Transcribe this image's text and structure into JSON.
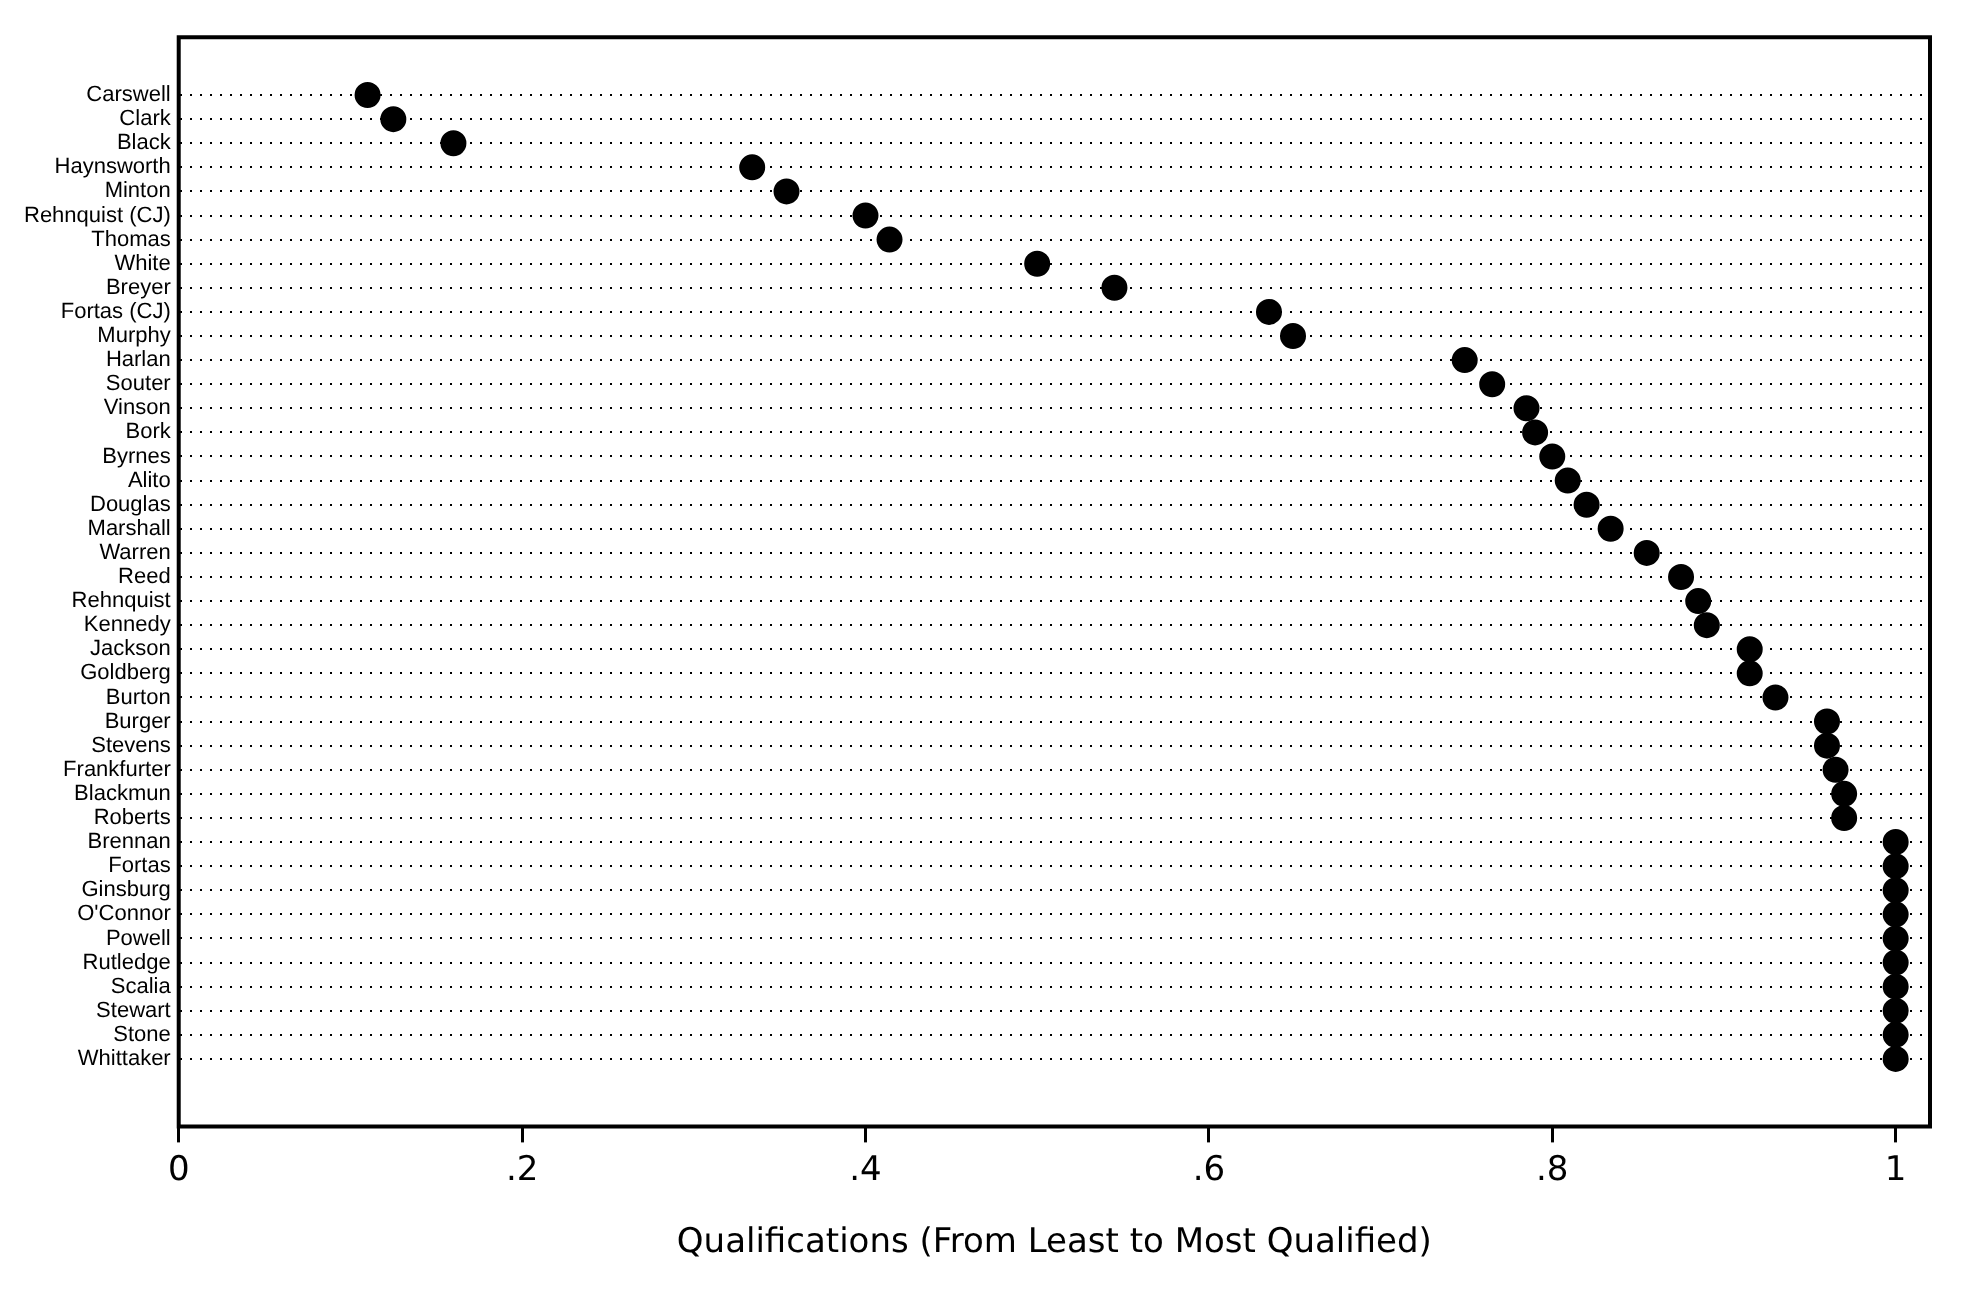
{
  "chart_data": {
    "type": "scatter",
    "orientation": "horizontal",
    "xlabel": "Qualifications (From Least to Most Qualified)",
    "categories": [
      "Carswell",
      "Clark",
      "Black",
      "Haynsworth",
      "Minton",
      "Rehnquist (CJ)",
      "Thomas",
      "White",
      "Breyer",
      "Fortas (CJ)",
      "Murphy",
      "Harlan",
      "Souter",
      "Vinson",
      "Bork",
      "Byrnes",
      "Alito",
      "Douglas",
      "Marshall",
      "Warren",
      "Reed",
      "Rehnquist",
      "Kennedy",
      "Jackson",
      "Goldberg",
      "Burton",
      "Burger",
      "Stevens",
      "Frankfurter",
      "Blackmun",
      "Roberts",
      "Brennan",
      "Fortas",
      "Ginsburg",
      "O'Connor",
      "Powell",
      "Rutledge",
      "Scalia",
      "Stewart",
      "Stone",
      "Whittaker"
    ],
    "values": [
      0.11,
      0.125,
      0.16,
      0.334,
      0.354,
      0.4,
      0.414,
      0.5,
      0.545,
      0.635,
      0.649,
      0.749,
      0.765,
      0.785,
      0.79,
      0.8,
      0.809,
      0.82,
      0.834,
      0.855,
      0.875,
      0.885,
      0.89,
      0.915,
      0.915,
      0.93,
      0.96,
      0.96,
      0.965,
      0.97,
      0.97,
      1,
      1,
      1,
      1,
      1,
      1,
      1,
      1,
      1,
      1
    ],
    "color": "#000000",
    "marker": "circle",
    "grid": "y",
    "xlim": [
      0,
      1.02
    ],
    "xticks": [
      0,
      {
        "value": 0.2,
        "label": ".2"
      },
      {
        "value": 0.4,
        "label": ".4"
      },
      {
        "value": 0.6,
        "label": ".6"
      },
      {
        "value": 0.8,
        "label": ".8"
      },
      1
    ]
  }
}
